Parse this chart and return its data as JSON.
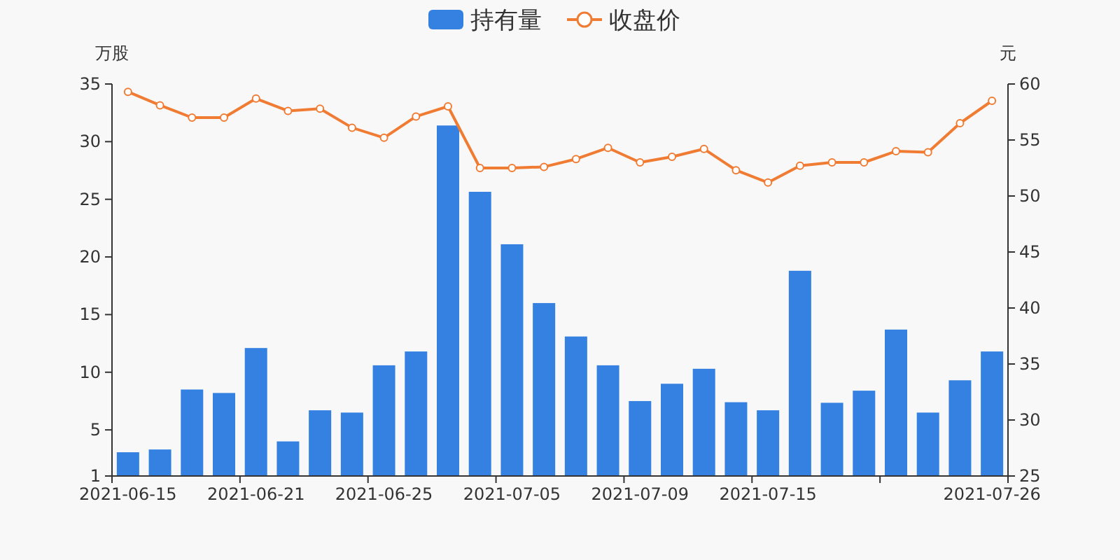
{
  "chart_data": {
    "type": "bar",
    "categories": [
      "2021-06-15",
      null,
      null,
      null,
      "2021-06-21",
      null,
      null,
      null,
      "2021-06-25",
      null,
      null,
      null,
      "2021-07-05",
      null,
      null,
      null,
      "2021-07-09",
      null,
      null,
      null,
      "2021-07-15",
      null,
      null,
      null,
      null,
      null,
      null,
      "2021-07-26"
    ],
    "series": [
      {
        "name": "持有量",
        "color": "#3481e2",
        "values": [
          3.06,
          3.3,
          8.5,
          8.2,
          12.1,
          4.0,
          6.7,
          6.5,
          10.6,
          11.8,
          31.4,
          25.65,
          21.1,
          16.0,
          13.1,
          10.6,
          7.5,
          9.0,
          10.3,
          7.4,
          6.7,
          18.8,
          7.35,
          8.4,
          13.7,
          6.5,
          9.3,
          11.8
        ]
      },
      {
        "name": "收盘价",
        "type": "line",
        "axis": "y2",
        "color": "#f07c33",
        "marker": "circle",
        "values": [
          59.3,
          58.1,
          57.0,
          57.0,
          58.7,
          57.6,
          57.8,
          56.1,
          55.2,
          57.1,
          58.0,
          52.5,
          52.5,
          52.6,
          53.3,
          54.3,
          53.0,
          53.5,
          54.2,
          52.3,
          51.2,
          52.7,
          53.0,
          53.0,
          54.0,
          53.9,
          56.5,
          58.5
        ]
      }
    ],
    "ylim": [
      1,
      35
    ],
    "yticks": [
      1,
      5,
      10,
      15,
      20,
      25,
      30,
      35
    ],
    "y2lim": [
      25,
      60
    ],
    "y2ticks": [
      25,
      30,
      35,
      40,
      45,
      50,
      55,
      60
    ],
    "ylabel": "万股",
    "y2label": "元",
    "legend": "top",
    "grid": false
  }
}
